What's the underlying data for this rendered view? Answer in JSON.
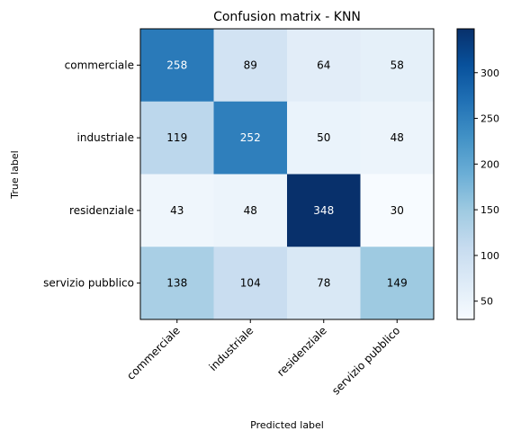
{
  "chart_data": {
    "type": "heatmap",
    "title": "Confusion matrix - KNN",
    "xlabel": "Predicted label",
    "ylabel": "True label",
    "x_categories": [
      "commerciale",
      "industriale",
      "residenziale",
      "servizio pubblico"
    ],
    "y_categories": [
      "commerciale",
      "industriale",
      "residenziale",
      "servizio pubblico"
    ],
    "values": [
      [
        258,
        89,
        64,
        58
      ],
      [
        119,
        252,
        50,
        48
      ],
      [
        43,
        48,
        348,
        30
      ],
      [
        138,
        104,
        78,
        149
      ]
    ],
    "colormap": "Blues",
    "color_range": [
      30,
      348
    ],
    "colorbar_ticks": [
      50,
      100,
      150,
      200,
      250,
      300
    ],
    "grid": false
  }
}
